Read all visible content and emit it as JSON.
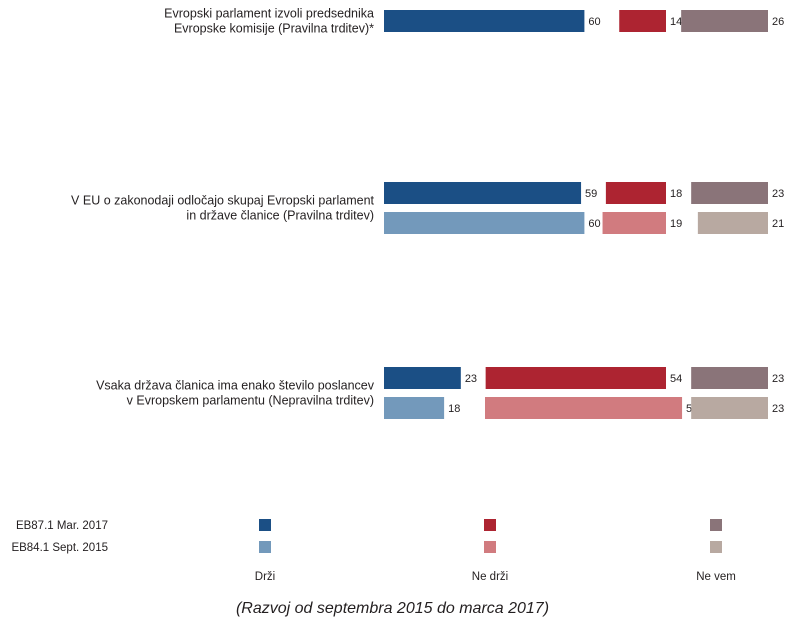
{
  "chart_data": {
    "type": "bar",
    "orientation": "horizontal",
    "layout": "stacked-panels",
    "columns": [
      "Drži",
      "Ne drži",
      "Ne vem"
    ],
    "series_meta": [
      {
        "name": "EB87.1 Mar. 2017",
        "colors": [
          "#1b4f85",
          "#ad2431",
          "#8a7479"
        ]
      },
      {
        "name": "EB84.1 Sept. 2015",
        "colors": [
          "#7399bb",
          "#d17b7f",
          "#b8a9a1"
        ]
      }
    ],
    "questions": [
      {
        "label": [
          "Evropski parlament izvoli predsednika",
          "Evropske komisije (Pravilna trditev)*"
        ],
        "rows": [
          {
            "series": "EB87.1 Mar. 2017",
            "values": [
              60,
              14,
              26
            ]
          }
        ]
      },
      {
        "label": [
          "V EU o zakonodaji odločajo skupaj Evropski parlament",
          "in države članice (Pravilna trditev)"
        ],
        "rows": [
          {
            "series": "EB87.1 Mar. 2017",
            "values": [
              59,
              18,
              23
            ]
          },
          {
            "series": "EB84.1 Sept. 2015",
            "values": [
              60,
              19,
              21
            ]
          }
        ]
      },
      {
        "label": [
          "Vsaka država članica ima enako število poslancev",
          "v Evropskem parlamentu (Nepravilna trditev)"
        ],
        "rows": [
          {
            "series": "EB87.1 Mar. 2017",
            "values": [
              23,
              54,
              23
            ]
          },
          {
            "series": "EB84.1 Sept. 2015",
            "values": [
              18,
              59,
              23
            ]
          }
        ]
      }
    ],
    "legend": {
      "position": "bottom",
      "entries": [
        "EB87.1 Mar. 2017",
        "EB84.1 Sept. 2015"
      ]
    },
    "footnote": "(Razvoj od septembra 2015 do marca 2017)"
  }
}
